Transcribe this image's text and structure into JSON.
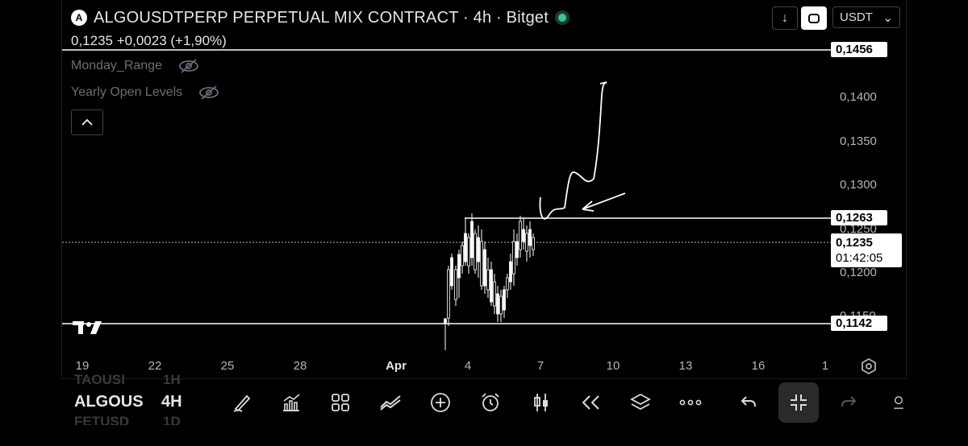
{
  "header": {
    "title": "ALGOUSDTPERP PERPETUAL MIX CONTRACT · 4h · Bitget",
    "logo_glyph": "A",
    "price_change": "0,1235  +0,0023 (+1,90%)",
    "currency": "USDT",
    "currency_chevron": "⌄",
    "download_glyph": "↓"
  },
  "indicators": [
    {
      "label": "Monday_Range"
    },
    {
      "label": "Yearly Open Levels"
    }
  ],
  "price_axis": {
    "labels": [
      "0,1400",
      "0,1350",
      "0,1300",
      "0,1250",
      "0,1200",
      "0,1150"
    ],
    "tags": [
      "0,1456",
      "0,1263",
      "0,1142"
    ],
    "current_price": "0,1235",
    "countdown": "01:42:05"
  },
  "time_axis": [
    "19",
    "22",
    "25",
    "28",
    "Apr",
    "4",
    "7",
    "10",
    "13",
    "16",
    "1"
  ],
  "bottom": {
    "symbol": "ALGOUS",
    "timeframe": "4H",
    "ghost_top_symbol": "TAOUSI",
    "ghost_top_tf": "1H",
    "ghost_bottom_symbol": "FETUSD",
    "ghost_bottom_tf": "1D"
  },
  "tools": [
    "brush-icon",
    "indicators-icon",
    "grid-icon",
    "compare-icon",
    "add-icon",
    "alarm-icon",
    "candle-icon",
    "replay-icon",
    "layers-icon",
    "more-icon",
    "undo-icon",
    "collapse-icon",
    "redo-icon"
  ],
  "colors": {
    "background": "#000000",
    "accent_green": "#2ecc9a",
    "text": "#e6e6e6",
    "muted": "#6a6d78"
  }
}
